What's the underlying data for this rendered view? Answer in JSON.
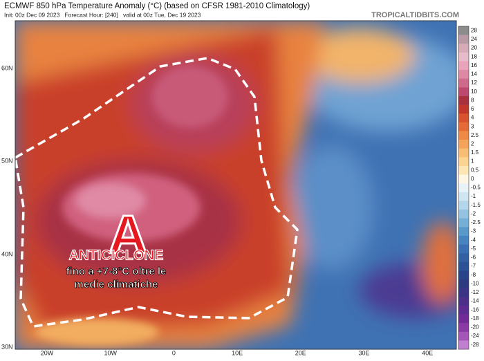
{
  "header": {
    "title": "ECMWF 850 hPa Temperature Anomaly (°C) (based on CFSR 1981-2010 Climatology)",
    "subtitle": "Init: 00z Dec 09 2023   Forecast Hour: [240]   valid at 00z Tue, Dec 19 2023",
    "watermark": "TROPICALTIDBITS.COM"
  },
  "latitudes": [
    "60N",
    "50N",
    "40N",
    "30N"
  ],
  "longitudes": [
    "20W",
    "10W",
    "0",
    "10E",
    "20E",
    "30E",
    "40E"
  ],
  "colorbar": {
    "labels": [
      28,
      24,
      20,
      18,
      16,
      14,
      12,
      10,
      8,
      6,
      4,
      3,
      2.5,
      2,
      1.5,
      1,
      0.5,
      0,
      -0.5,
      -1,
      -1.5,
      -2,
      -2.5,
      -3,
      -4,
      -5,
      -6,
      -7,
      -8,
      -10,
      -12,
      -14,
      -16,
      -18,
      -20,
      -24,
      -28
    ],
    "colors": [
      "#8c8c8c",
      "#b89aa6",
      "#d7aab8",
      "#e6bccb",
      "#e9a3bb",
      "#de88a6",
      "#cf6a8c",
      "#bd4a6e",
      "#a8303f",
      "#c2372b",
      "#d8522f",
      "#e46b36",
      "#ee8a45",
      "#f4a45a",
      "#f8bd74",
      "#fbd392",
      "#fde6b4",
      "#fdf6e3",
      "#e8f2f8",
      "#cfe5f2",
      "#b3d6ea",
      "#94c3e1",
      "#76afd6",
      "#5a9acb",
      "#4584bf",
      "#3a6fb1",
      "#3260a3",
      "#2b5196",
      "#284489",
      "#2d3a82",
      "#3a3386",
      "#4b2f8b",
      "#5e2c90",
      "#722b96",
      "#8a3aa5",
      "#a455b8",
      "#c07fcf"
    ]
  },
  "annotations": {
    "letter": "A",
    "headline": "ANTICICLONE",
    "line1": "fino a +7-8°C oltre le",
    "line2": "medie climatiche"
  }
}
